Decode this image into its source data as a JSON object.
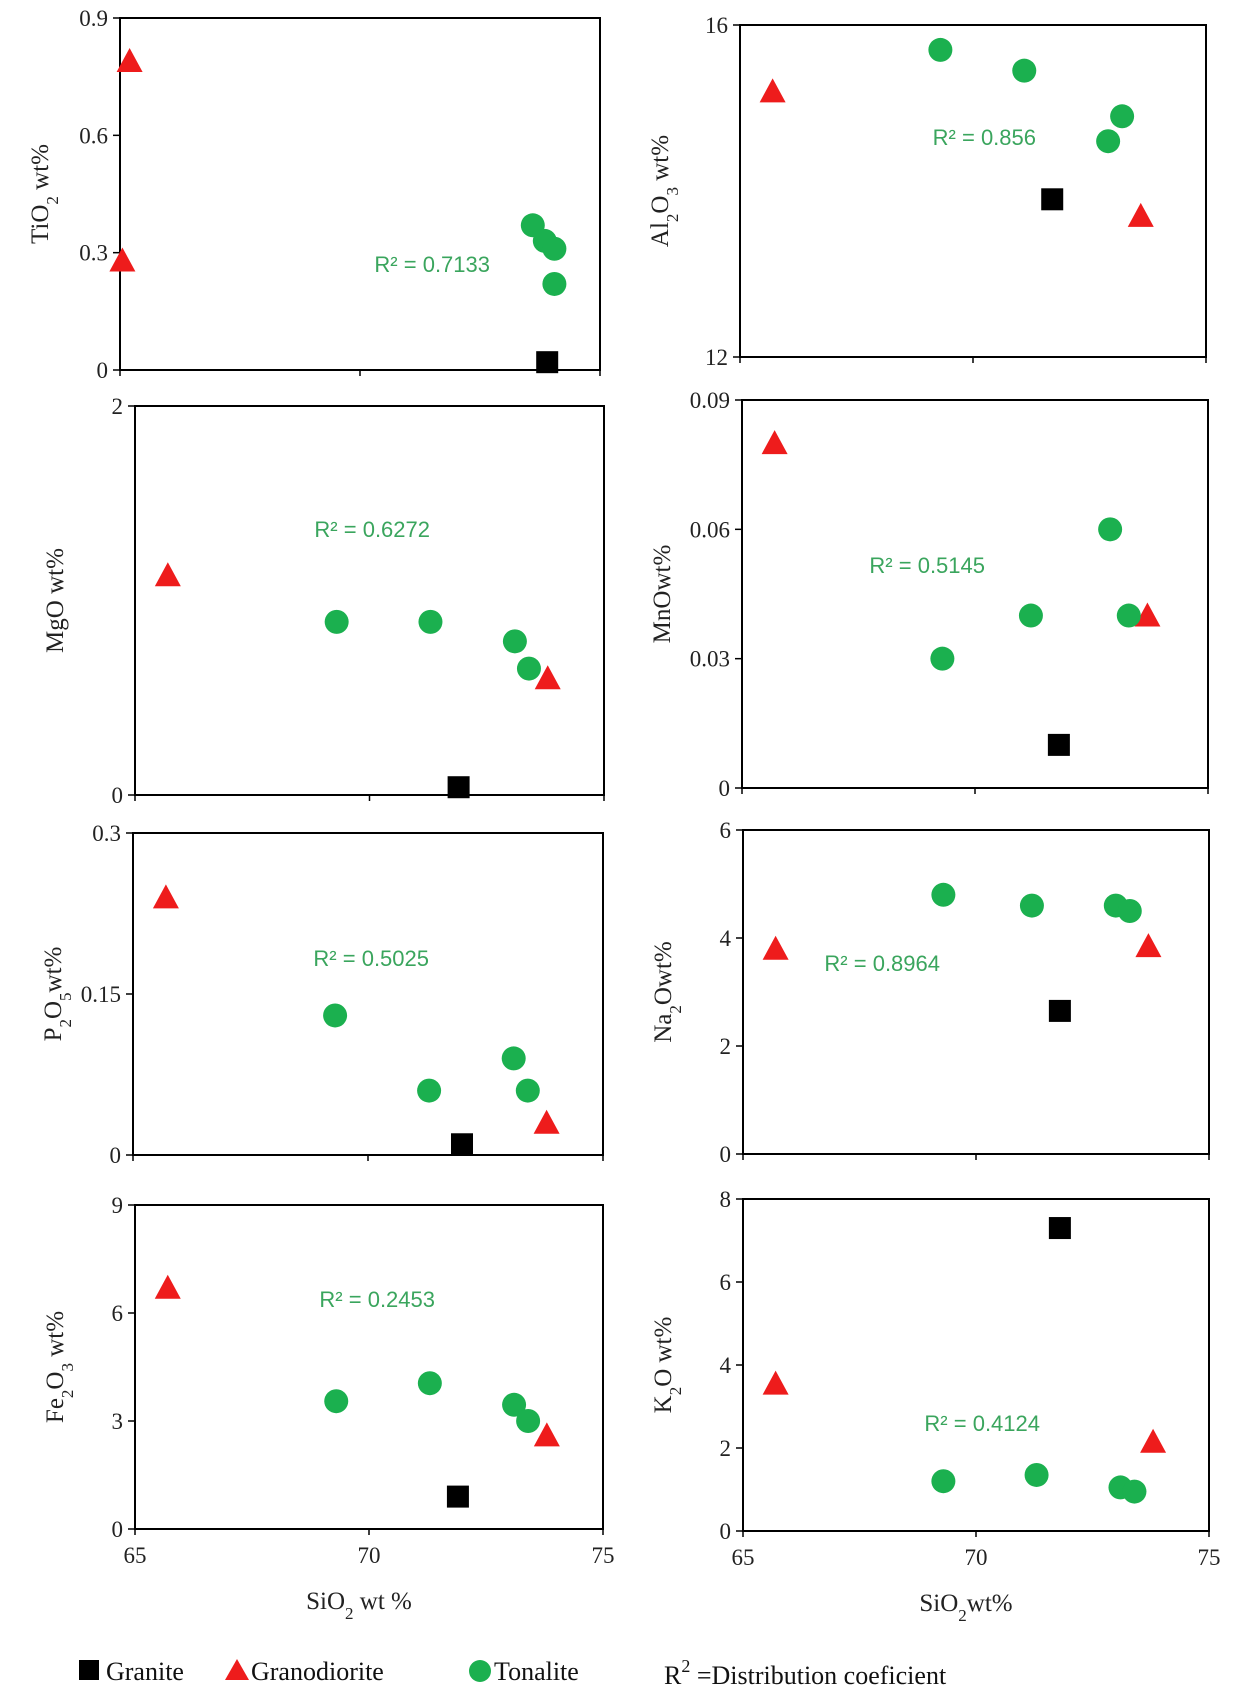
{
  "chart_data": [
    {
      "type": "scatter",
      "id": "tio2",
      "ylabel_main": "TiO",
      "ylabel_sub": "2",
      "ylabel_tail": " wt%",
      "xlim": [
        65,
        75
      ],
      "ylim": [
        0,
        0.9
      ],
      "yticks": [
        "0",
        "0.3",
        "0.6",
        "0.9"
      ],
      "r2": "R² = 0.7133",
      "series": [
        {
          "name": "Granite",
          "points": [
            [
              73.9,
              0.02
            ]
          ]
        },
        {
          "name": "Granodiorite",
          "points": [
            [
              65.2,
              0.79
            ],
            [
              65.05,
              0.28
            ]
          ]
        },
        {
          "name": "Tonalite",
          "points": [
            [
              73.6,
              0.37
            ],
            [
              73.85,
              0.33
            ],
            [
              74.05,
              0.31
            ],
            [
              74.05,
              0.22
            ]
          ]
        }
      ]
    },
    {
      "type": "scatter",
      "id": "al2o3",
      "ylabel_main": "Al",
      "ylabel_sub": "2",
      "ylabel_mid": "O",
      "ylabel_sub2": "3",
      "ylabel_tail": " wt%",
      "xlim": [
        65,
        75
      ],
      "ylim": [
        12,
        16
      ],
      "yticks": [
        "12",
        "16"
      ],
      "r2": "R² = 0.856",
      "series": [
        {
          "name": "Granite",
          "points": [
            [
              71.7,
              13.9
            ]
          ]
        },
        {
          "name": "Granodiorite",
          "points": [
            [
              65.7,
              15.2
            ],
            [
              73.6,
              13.7
            ]
          ]
        },
        {
          "name": "Tonalite",
          "points": [
            [
              69.3,
              15.7
            ],
            [
              71.1,
              15.45
            ],
            [
              73.2,
              14.9
            ],
            [
              72.9,
              14.6
            ]
          ]
        }
      ]
    },
    {
      "type": "scatter",
      "id": "mgo",
      "ylabel_main": "MgO wt%",
      "xlim": [
        65,
        75
      ],
      "ylim": [
        0,
        2
      ],
      "yticks": [
        "0",
        "2"
      ],
      "r2": "R² = 0.6272",
      "series": [
        {
          "name": "Granite",
          "points": [
            [
              71.9,
              0.04
            ]
          ]
        },
        {
          "name": "Granodiorite",
          "points": [
            [
              65.7,
              1.13
            ],
            [
              73.8,
              0.6
            ]
          ]
        },
        {
          "name": "Tonalite",
          "points": [
            [
              69.3,
              0.89
            ],
            [
              71.3,
              0.89
            ],
            [
              73.1,
              0.79
            ],
            [
              73.4,
              0.65
            ]
          ]
        }
      ]
    },
    {
      "type": "scatter",
      "id": "mno",
      "ylabel_main": "MnOwt%",
      "xlim": [
        65,
        75
      ],
      "ylim": [
        0,
        0.09
      ],
      "yticks": [
        "0",
        "0.03",
        "0.06",
        "0.09"
      ],
      "r2": "R² = 0.5145",
      "series": [
        {
          "name": "Granite",
          "points": [
            [
              71.8,
              0.01
            ]
          ]
        },
        {
          "name": "Granodiorite",
          "points": [
            [
              65.7,
              0.08
            ],
            [
              73.7,
              0.04
            ]
          ]
        },
        {
          "name": "Tonalite",
          "points": [
            [
              69.3,
              0.03
            ],
            [
              71.2,
              0.04
            ],
            [
              72.9,
              0.06
            ],
            [
              73.3,
              0.04
            ]
          ]
        }
      ]
    },
    {
      "type": "scatter",
      "id": "p2o5",
      "ylabel_main": "P",
      "ylabel_sub": "2",
      "ylabel_mid": "O",
      "ylabel_sub2": "5",
      "ylabel_tail": "wt%",
      "xlim": [
        65,
        75
      ],
      "ylim": [
        0,
        0.3
      ],
      "yticks": [
        "0",
        "0.15",
        "0.3"
      ],
      "r2": "R² = 0.5025",
      "series": [
        {
          "name": "Granite",
          "points": [
            [
              72.0,
              0.01
            ]
          ]
        },
        {
          "name": "Granodiorite",
          "points": [
            [
              65.7,
              0.24
            ],
            [
              73.8,
              0.03
            ]
          ]
        },
        {
          "name": "Tonalite",
          "points": [
            [
              69.3,
              0.13
            ],
            [
              71.3,
              0.06
            ],
            [
              73.1,
              0.09
            ],
            [
              73.4,
              0.06
            ]
          ]
        }
      ]
    },
    {
      "type": "scatter",
      "id": "na2o",
      "ylabel_main": "Na",
      "ylabel_sub": "2",
      "ylabel_tail": "Owt%",
      "xlim": [
        65,
        75
      ],
      "ylim": [
        0,
        6
      ],
      "yticks": [
        "0",
        "2",
        "4",
        "6"
      ],
      "r2": "R² = 0.8964",
      "series": [
        {
          "name": "Granite",
          "points": [
            [
              71.8,
              2.65
            ]
          ]
        },
        {
          "name": "Granodiorite",
          "points": [
            [
              65.7,
              3.8
            ],
            [
              73.7,
              3.85
            ]
          ]
        },
        {
          "name": "Tonalite",
          "points": [
            [
              69.3,
              4.8
            ],
            [
              71.2,
              4.6
            ],
            [
              73.0,
              4.6
            ],
            [
              73.3,
              4.5
            ]
          ]
        }
      ]
    },
    {
      "type": "scatter",
      "id": "fe2o3",
      "ylabel_main": "Fe",
      "ylabel_sub": "2",
      "ylabel_mid": "O",
      "ylabel_sub2": "3",
      "ylabel_tail": " wt%",
      "xlim": [
        65,
        75
      ],
      "ylim": [
        0,
        9
      ],
      "yticks": [
        "0",
        "3",
        "6",
        "9"
      ],
      "xticks": [
        "65",
        "70",
        "75"
      ],
      "xlabel_main": "SiO",
      "xlabel_sub": "2",
      "xlabel_tail": " wt %",
      "r2": "R² = 0.2453",
      "series": [
        {
          "name": "Granite",
          "points": [
            [
              71.9,
              0.9
            ]
          ]
        },
        {
          "name": "Granodiorite",
          "points": [
            [
              65.7,
              6.7
            ],
            [
              73.8,
              2.6
            ]
          ]
        },
        {
          "name": "Tonalite",
          "points": [
            [
              69.3,
              3.55
            ],
            [
              71.3,
              4.05
            ],
            [
              73.1,
              3.45
            ],
            [
              73.4,
              3.0
            ]
          ]
        }
      ]
    },
    {
      "type": "scatter",
      "id": "k2o",
      "ylabel_main": "K",
      "ylabel_sub": "2",
      "ylabel_tail": "O wt%",
      "xlim": [
        65,
        75
      ],
      "ylim": [
        0,
        8
      ],
      "yticks": [
        "0",
        "2",
        "4",
        "6",
        "8"
      ],
      "xticks": [
        "65",
        "70",
        "75"
      ],
      "xlabel_main": "SiO",
      "xlabel_sub": "2",
      "xlabel_tail": "wt%",
      "r2": "R² = 0.4124",
      "series": [
        {
          "name": "Granite",
          "points": [
            [
              71.8,
              7.3
            ]
          ]
        },
        {
          "name": "Granodiorite",
          "points": [
            [
              65.7,
              3.55
            ],
            [
              73.8,
              2.15
            ]
          ]
        },
        {
          "name": "Tonalite",
          "points": [
            [
              69.3,
              1.2
            ],
            [
              71.3,
              1.35
            ],
            [
              73.1,
              1.05
            ],
            [
              73.4,
              0.95
            ]
          ]
        }
      ]
    }
  ],
  "legend": {
    "items": [
      {
        "name": "Granite",
        "marker": "square",
        "color": "#000000"
      },
      {
        "name": "Granodiorite",
        "marker": "triangle",
        "color": "#ee1c1c"
      },
      {
        "name": "Tonalite",
        "marker": "circle",
        "color": "#1bb04f"
      }
    ],
    "note_main": "R",
    "note_sup": "2",
    "note_tail": " =Distribution coeficient"
  },
  "colors": {
    "Granite": "#000000",
    "Granodiorite": "#ee1c1c",
    "Tonalite": "#1bb04f",
    "r2_text": "#3aa55d"
  }
}
